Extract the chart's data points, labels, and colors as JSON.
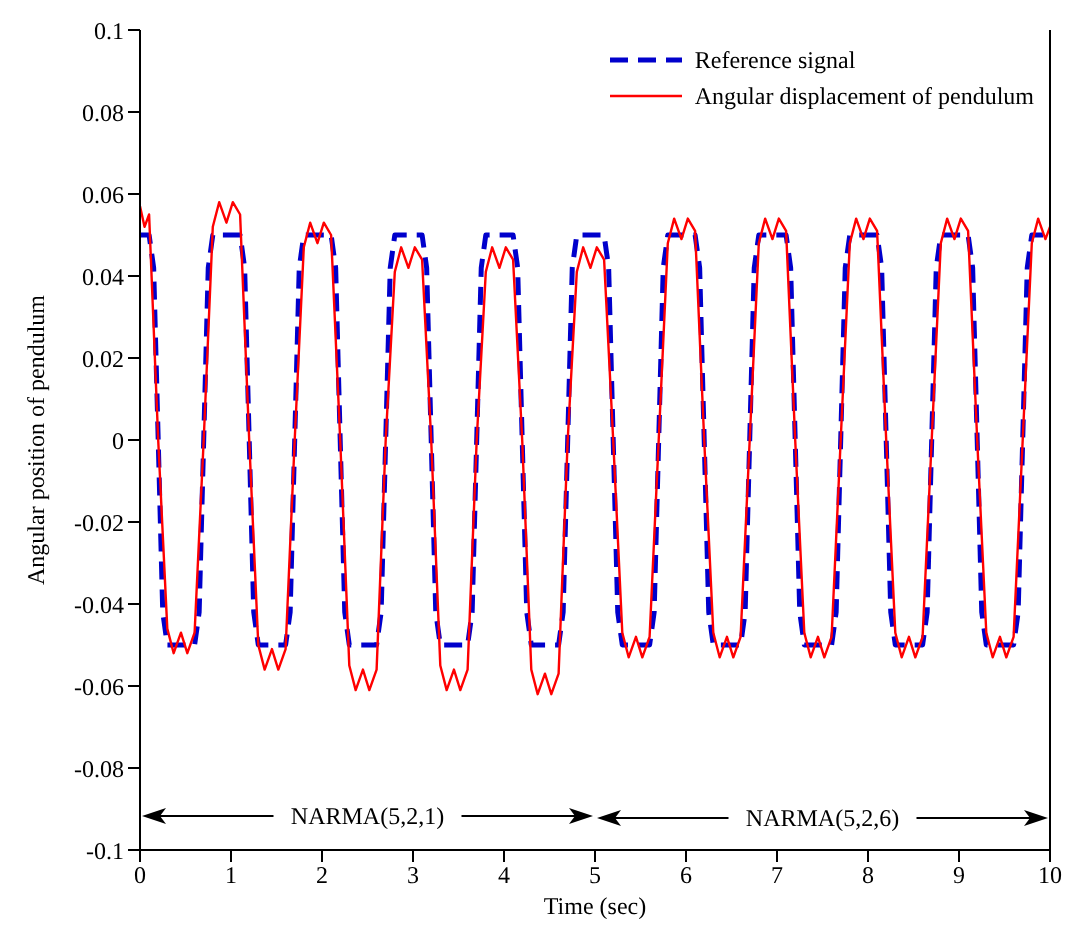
{
  "chart_data": {
    "type": "line",
    "xlabel": "Time (sec)",
    "ylabel": "Angular position of pendulum",
    "xlim": [
      0,
      10
    ],
    "ylim": [
      -0.1,
      0.1
    ],
    "xticks": [
      0,
      1,
      2,
      3,
      4,
      5,
      6,
      7,
      8,
      9,
      10
    ],
    "yticks": [
      -0.1,
      -0.08,
      -0.06,
      -0.04,
      -0.02,
      0,
      0.02,
      0.04,
      0.06,
      0.08,
      0.1
    ],
    "legend": "top right",
    "marker": "none",
    "annotations": [
      "NARMA(5,2,1)",
      "NARMA(5,2,6)"
    ],
    "series": [
      {
        "name": "Reference signal",
        "color": "#0000cc",
        "line_style": "dashed",
        "x": [
          0,
          0.1,
          0.15,
          0.2,
          0.25,
          0.3,
          0.6,
          0.65,
          0.7,
          0.75,
          0.8,
          1.1,
          1.15,
          1.2,
          1.25,
          1.3,
          1.6,
          1.65,
          1.7,
          1.75,
          1.8,
          2.1,
          2.15,
          2.2,
          2.25,
          2.3,
          2.6,
          2.65,
          2.7,
          2.75,
          2.8,
          3.1,
          3.15,
          3.2,
          3.25,
          3.3,
          3.6,
          3.65,
          3.7,
          3.75,
          3.8,
          4.1,
          4.15,
          4.2,
          4.25,
          4.3,
          4.6,
          4.65,
          4.7,
          4.75,
          4.8,
          5.1,
          5.15,
          5.2,
          5.25,
          5.3,
          5.6,
          5.65,
          5.7,
          5.75,
          5.8,
          6.1,
          6.15,
          6.2,
          6.25,
          6.3,
          6.6,
          6.65,
          6.7,
          6.75,
          6.8,
          7.1,
          7.15,
          7.2,
          7.25,
          7.3,
          7.6,
          7.65,
          7.7,
          7.75,
          7.8,
          8.1,
          8.15,
          8.2,
          8.25,
          8.3,
          8.6,
          8.65,
          8.7,
          8.75,
          8.8,
          9.1,
          9.15,
          9.2,
          9.25,
          9.3,
          9.6,
          9.65,
          9.7,
          9.75,
          9.8,
          10
        ],
        "values": [
          0.05,
          0.05,
          0.042,
          0,
          -0.042,
          -0.05,
          -0.05,
          -0.042,
          0,
          0.042,
          0.05,
          0.05,
          0.042,
          0,
          -0.042,
          -0.05,
          -0.05,
          -0.042,
          0,
          0.042,
          0.05,
          0.05,
          0.042,
          0,
          -0.042,
          -0.05,
          -0.05,
          -0.042,
          0,
          0.042,
          0.05,
          0.05,
          0.042,
          0,
          -0.042,
          -0.05,
          -0.05,
          -0.042,
          0,
          0.042,
          0.05,
          0.05,
          0.042,
          0,
          -0.042,
          -0.05,
          -0.05,
          -0.042,
          0,
          0.042,
          0.05,
          0.05,
          0.042,
          0,
          -0.042,
          -0.05,
          -0.05,
          -0.042,
          0,
          0.042,
          0.05,
          0.05,
          0.042,
          0,
          -0.042,
          -0.05,
          -0.05,
          -0.042,
          0,
          0.042,
          0.05,
          0.05,
          0.042,
          0,
          -0.042,
          -0.05,
          -0.05,
          -0.042,
          0,
          0.042,
          0.05,
          0.05,
          0.042,
          0,
          -0.042,
          -0.05,
          -0.05,
          -0.042,
          0,
          0.042,
          0.05,
          0.05,
          0.042,
          0,
          -0.042,
          -0.05,
          -0.05,
          -0.042,
          0,
          0.042,
          0.05,
          0.05
        ]
      },
      {
        "name": "Angular displacement of pendulum",
        "color": "#ff0000",
        "line_style": "solid",
        "x": [
          0,
          0.05,
          0.1,
          0.2,
          0.3,
          0.37,
          0.45,
          0.52,
          0.6,
          0.7,
          0.8,
          0.87,
          0.95,
          1.02,
          1.1,
          1.2,
          1.3,
          1.37,
          1.45,
          1.52,
          1.6,
          1.7,
          1.8,
          1.87,
          1.95,
          2.02,
          2.1,
          2.2,
          2.3,
          2.37,
          2.45,
          2.52,
          2.6,
          2.7,
          2.8,
          2.87,
          2.95,
          3.02,
          3.1,
          3.2,
          3.3,
          3.37,
          3.45,
          3.52,
          3.6,
          3.7,
          3.8,
          3.87,
          3.95,
          4.02,
          4.1,
          4.2,
          4.3,
          4.37,
          4.45,
          4.52,
          4.6,
          4.7,
          4.8,
          4.87,
          4.95,
          5.02,
          5.1,
          5.2,
          5.3,
          5.37,
          5.45,
          5.52,
          5.6,
          5.7,
          5.8,
          5.87,
          5.95,
          6.02,
          6.1,
          6.2,
          6.3,
          6.37,
          6.45,
          6.52,
          6.6,
          6.7,
          6.8,
          6.87,
          6.95,
          7.02,
          7.1,
          7.2,
          7.3,
          7.37,
          7.45,
          7.52,
          7.6,
          7.7,
          7.8,
          7.87,
          7.95,
          8.02,
          8.1,
          8.2,
          8.3,
          8.37,
          8.45,
          8.52,
          8.6,
          8.7,
          8.8,
          8.87,
          8.95,
          9.02,
          9.1,
          9.2,
          9.3,
          9.37,
          9.45,
          9.52,
          9.6,
          9.7,
          9.8,
          9.87,
          9.95,
          10
        ],
        "values": [
          0.057,
          0.052,
          0.055,
          0,
          -0.046,
          -0.052,
          -0.047,
          -0.052,
          -0.047,
          0,
          0.052,
          0.058,
          0.053,
          0.058,
          0.055,
          0,
          -0.05,
          -0.056,
          -0.051,
          -0.056,
          -0.051,
          0,
          0.047,
          0.053,
          0.048,
          0.053,
          0.05,
          0,
          -0.055,
          -0.061,
          -0.056,
          -0.061,
          -0.056,
          0,
          0.041,
          0.047,
          0.042,
          0.047,
          0.044,
          0,
          -0.055,
          -0.061,
          -0.056,
          -0.061,
          -0.056,
          0,
          0.041,
          0.047,
          0.042,
          0.047,
          0.044,
          0,
          -0.056,
          -0.062,
          -0.057,
          -0.062,
          -0.057,
          0,
          0.041,
          0.047,
          0.042,
          0.047,
          0.044,
          0,
          -0.047,
          -0.053,
          -0.048,
          -0.053,
          -0.048,
          0,
          0.048,
          0.054,
          0.049,
          0.054,
          0.051,
          0,
          -0.047,
          -0.053,
          -0.048,
          -0.053,
          -0.048,
          0,
          0.048,
          0.054,
          0.049,
          0.054,
          0.051,
          0,
          -0.047,
          -0.053,
          -0.048,
          -0.053,
          -0.048,
          0,
          0.048,
          0.054,
          0.049,
          0.054,
          0.051,
          0,
          -0.047,
          -0.053,
          -0.048,
          -0.053,
          -0.048,
          0,
          0.048,
          0.054,
          0.049,
          0.054,
          0.051,
          0,
          -0.047,
          -0.053,
          -0.048,
          -0.053,
          -0.048,
          0,
          0.048,
          0.054,
          0.049,
          0.052
        ]
      }
    ]
  }
}
